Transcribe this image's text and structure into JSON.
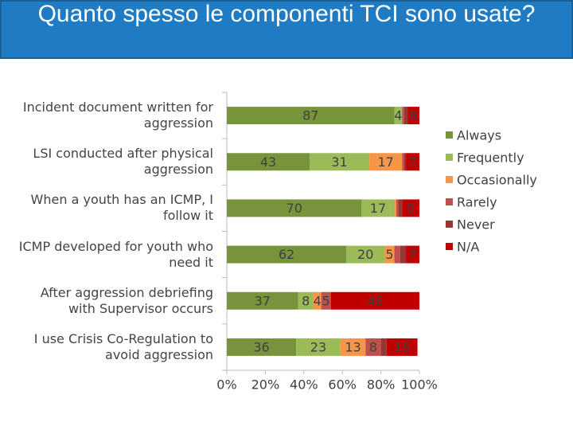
{
  "chart_data": {
    "type": "stacked-bar-horizontal",
    "title": "Quanto spesso le componenti TCI sono usate?",
    "categories": [
      "Incident document written for aggression",
      "LSI conducted after physical aggression",
      "When a youth has an ICMP, I follow it",
      "ICMP developed for youth who need it",
      "After aggression debriefing with Supervisor occurs",
      "I use Crisis Co-Regulation to avoid aggression"
    ],
    "series": [
      {
        "name": "Always",
        "color": "#77933c",
        "values": [
          87,
          43,
          70,
          62,
          37,
          36
        ]
      },
      {
        "name": "Frequently",
        "color": "#9bbb59",
        "values": [
          4,
          31,
          17,
          20,
          8,
          23
        ]
      },
      {
        "name": "Occasionally",
        "color": "#f79646",
        "values": [
          0,
          17,
          1,
          5,
          4,
          13
        ]
      },
      {
        "name": "Rarely",
        "color": "#c0504d",
        "values": [
          1,
          1,
          1,
          3,
          5,
          8
        ]
      },
      {
        "name": "Never",
        "color": "#953735",
        "values": [
          2,
          1,
          2,
          3,
          0,
          3
        ]
      },
      {
        "name": "N/A",
        "color": "#c00000",
        "values": [
          6,
          7,
          9,
          7,
          46,
          16
        ]
      }
    ],
    "xlim": [
      0,
      100
    ],
    "xticks": [
      {
        "value": 0,
        "label": "0%"
      },
      {
        "value": 20,
        "label": "20%"
      },
      {
        "value": 40,
        "label": "40%"
      },
      {
        "value": 60,
        "label": "60%"
      },
      {
        "value": 80,
        "label": "80%"
      },
      {
        "value": 100,
        "label": "100%"
      }
    ],
    "legend": "right"
  }
}
